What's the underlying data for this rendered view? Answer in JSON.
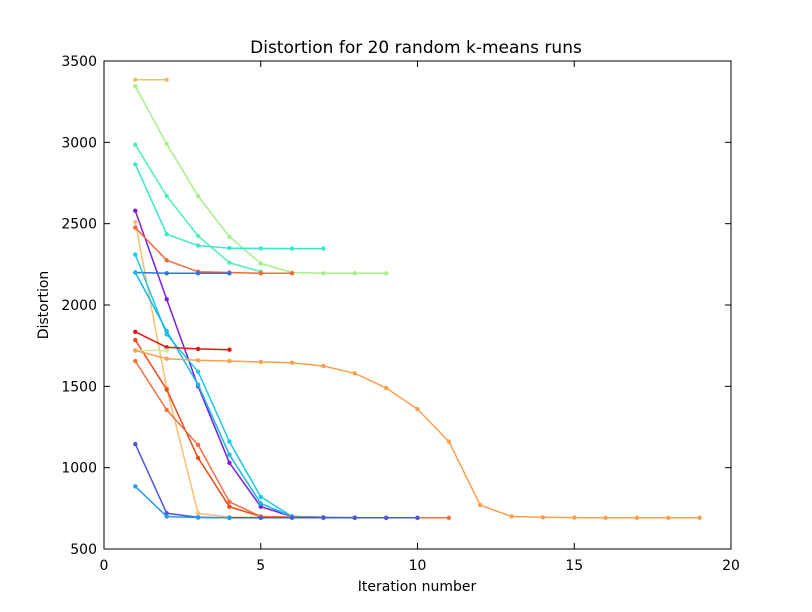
{
  "chart_data": {
    "type": "line",
    "title": "Distortion for 20 random k-means runs",
    "xlabel": "Iteration number",
    "ylabel": "Distortion",
    "xlim": [
      0,
      20
    ],
    "ylim": [
      500,
      3500
    ],
    "xticks": [
      0,
      5,
      10,
      15,
      20
    ],
    "yticks": [
      500,
      1000,
      1500,
      2000,
      2500,
      3000,
      3500
    ],
    "grid": false,
    "legend": false,
    "series": [
      {
        "color": "#e8c16a",
        "x": [
          1,
          2
        ],
        "y": [
          3385,
          3385
        ]
      },
      {
        "color": "#a6f08a",
        "x": [
          1,
          2,
          3,
          4,
          5,
          6,
          7,
          8,
          9
        ],
        "y": [
          3345,
          2990,
          2670,
          2420,
          2255,
          2200,
          2195,
          2195,
          2195
        ]
      },
      {
        "color": "#4ff0b4",
        "x": [
          1,
          2,
          3,
          4,
          5
        ],
        "y": [
          2985,
          2670,
          2425,
          2260,
          2205
        ]
      },
      {
        "color": "#3ce8cc",
        "x": [
          1,
          2,
          3,
          4,
          5,
          6,
          7
        ],
        "y": [
          2865,
          2435,
          2365,
          2350,
          2348,
          2347,
          2347
        ]
      },
      {
        "color": "#7a1fe0",
        "x": [
          1,
          2,
          3,
          4,
          5,
          6,
          7
        ],
        "y": [
          2580,
          2035,
          1500,
          1030,
          760,
          700,
          695
        ]
      },
      {
        "color": "#f8c070",
        "x": [
          1,
          2,
          3,
          4,
          5
        ],
        "y": [
          2510,
          1490,
          720,
          695,
          695
        ]
      },
      {
        "color": "#f06a40",
        "x": [
          1,
          2,
          3,
          4,
          5,
          6
        ],
        "y": [
          2475,
          2275,
          2205,
          2200,
          2195,
          2195
        ]
      },
      {
        "color": "#2e72e8",
        "x": [
          1,
          2,
          3,
          4
        ],
        "y": [
          2200,
          2195,
          2195,
          2195
        ]
      },
      {
        "color": "#1cc8e8",
        "x": [
          1,
          2,
          3,
          4,
          5,
          6,
          7,
          8
        ],
        "y": [
          2310,
          1820,
          1590,
          1160,
          820,
          700,
          695,
          693
        ]
      },
      {
        "color": "#18b8e8",
        "x": [
          1,
          2,
          3,
          4,
          5,
          6,
          7
        ],
        "y": [
          2200,
          1840,
          1510,
          1080,
          780,
          700,
          695
        ]
      },
      {
        "color": "#e01810",
        "x": [
          1,
          2,
          3,
          4
        ],
        "y": [
          1835,
          1740,
          1730,
          1725
        ]
      },
      {
        "color": "#f04818",
        "x": [
          1,
          2,
          3,
          4,
          5,
          6,
          7,
          8,
          9
        ],
        "y": [
          1785,
          1480,
          1060,
          760,
          700,
          695,
          693,
          692,
          692
        ]
      },
      {
        "color": "#c8f090",
        "x": [
          1,
          2
        ],
        "y": [
          1720,
          1720
        ]
      },
      {
        "color": "#f8a050",
        "x": [
          1,
          2,
          3,
          4,
          5,
          6,
          7,
          8,
          9,
          10,
          11,
          12,
          13,
          14,
          15,
          16,
          17,
          18,
          19
        ],
        "y": [
          1720,
          1670,
          1660,
          1655,
          1650,
          1645,
          1625,
          1580,
          1490,
          1360,
          1160,
          770,
          700,
          695,
          693,
          692,
          692,
          692,
          692
        ]
      },
      {
        "color": "#f07040",
        "x": [
          1,
          2,
          3,
          4,
          5,
          6,
          7,
          8,
          9,
          10,
          11
        ],
        "y": [
          1655,
          1355,
          1140,
          790,
          700,
          695,
          693,
          692,
          692,
          692,
          692
        ]
      },
      {
        "color": "#4858e0",
        "x": [
          1,
          2,
          3,
          4,
          5,
          6,
          7,
          8,
          9,
          10
        ],
        "y": [
          1145,
          720,
          695,
          692,
          692,
          692,
          692,
          692,
          692,
          692
        ]
      },
      {
        "color": "#2898e8",
        "x": [
          1,
          2,
          3,
          4
        ],
        "y": [
          885,
          700,
          693,
          692
        ]
      }
    ]
  }
}
